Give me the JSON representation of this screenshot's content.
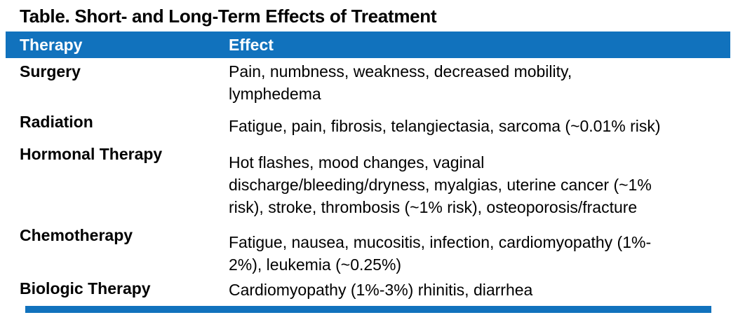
{
  "title": "Table. Short- and Long-Term Effects of Treatment",
  "table": {
    "columns": [
      "Therapy",
      "Effect"
    ],
    "rows": [
      {
        "therapy": "Surgery",
        "effect": "Pain, numbness, weakness, decreased mobility,\nlymphedema"
      },
      {
        "therapy": "Radiation",
        "effect": "Fatigue, pain, fibrosis, telangiectasia, sarcoma (~0.01% risk)"
      },
      {
        "therapy": "Hormonal Therapy",
        "effect": "Hot flashes, mood changes, vaginal\ndischarge/bleeding/dryness, myalgias, uterine cancer (~1%\nrisk), stroke, thrombosis (~1% risk), osteoporosis/fracture"
      },
      {
        "therapy": "Chemotherapy",
        "effect": "Fatigue, nausea, mucositis, infection, cardiomyopathy (1%-\n2%), leukemia (~0.25%)"
      },
      {
        "therapy": "Biologic Therapy",
        "effect": "Cardiomyopathy (1%-3%) rhinitis, diarrhea"
      }
    ]
  },
  "colors": {
    "header_bg": "#1172BD",
    "header_text": "#FFFFFF",
    "body_text": "#000000",
    "accent_bar": "#1172BD"
  }
}
